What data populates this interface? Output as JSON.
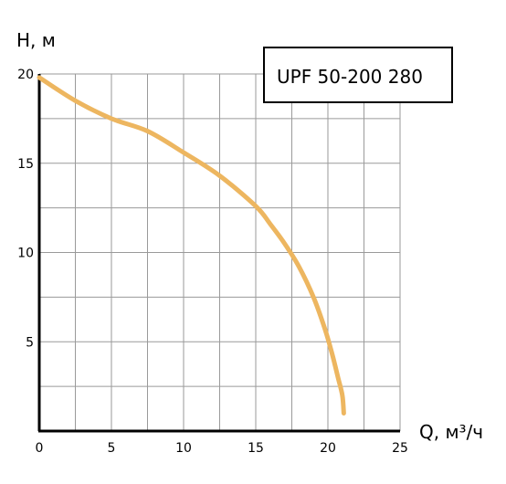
{
  "chart_data": {
    "type": "line",
    "title": "UPF 50-200 280",
    "xlabel": "Q, м³/ч",
    "ylabel": "H, м",
    "xlim": [
      0,
      25
    ],
    "ylim": [
      0,
      20
    ],
    "x_ticks": [
      0,
      5,
      10,
      15,
      20,
      25
    ],
    "x_tick_labels": [
      "0",
      "5",
      "10",
      "15",
      "20",
      "25"
    ],
    "y_ticks": [
      5,
      10,
      15,
      20
    ],
    "y_tick_labels": [
      "5",
      "10",
      "15",
      "20"
    ],
    "x_grid_step": 2.5,
    "y_grid_step": 2.5,
    "grid": true,
    "legend": "none",
    "series": [
      {
        "color": "#EDB660",
        "x": [
          0,
          2.5,
          5,
          7.5,
          10,
          12.5,
          15,
          16,
          17,
          18,
          19,
          19.8,
          20.3,
          20.7,
          21.0,
          21.1
        ],
        "y": [
          19.8,
          18.5,
          17.5,
          16.8,
          15.6,
          14.3,
          12.6,
          11.6,
          10.5,
          9.2,
          7.5,
          5.7,
          4.3,
          3.0,
          2.0,
          1.0
        ]
      }
    ]
  }
}
